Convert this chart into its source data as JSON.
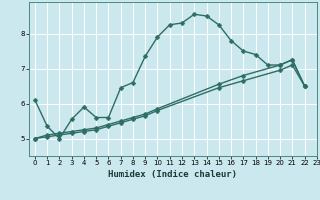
{
  "xlabel": "Humidex (Indice chaleur)",
  "background_color": "#cce8ef",
  "grid_color": "#ffffff",
  "line_color": "#2d6e63",
  "xlim": [
    -0.5,
    23
  ],
  "ylim": [
    4.5,
    8.9
  ],
  "yticks": [
    5,
    6,
    7,
    8
  ],
  "xticks": [
    0,
    1,
    2,
    3,
    4,
    5,
    6,
    7,
    8,
    9,
    10,
    11,
    12,
    13,
    14,
    15,
    16,
    17,
    18,
    19,
    20,
    21,
    22,
    23
  ],
  "series1_x": [
    0,
    1,
    2,
    3,
    4,
    5,
    6,
    7,
    8,
    9,
    10,
    11,
    12,
    13,
    14,
    15,
    16,
    17,
    18,
    19,
    20,
    21,
    22
  ],
  "series1_y": [
    6.1,
    5.35,
    5.0,
    5.55,
    5.9,
    5.6,
    5.6,
    6.45,
    6.6,
    7.35,
    7.9,
    8.25,
    8.3,
    8.55,
    8.5,
    8.25,
    7.8,
    7.5,
    7.4,
    7.1,
    7.1,
    7.25,
    6.5
  ],
  "series2_x": [
    0,
    1,
    2,
    3,
    4,
    5,
    6,
    7,
    8,
    9,
    10,
    15,
    17,
    20,
    21,
    22
  ],
  "series2_y": [
    5.0,
    5.1,
    5.15,
    5.2,
    5.25,
    5.3,
    5.4,
    5.5,
    5.6,
    5.7,
    5.85,
    6.55,
    6.8,
    7.1,
    7.25,
    6.5
  ],
  "series3_x": [
    0,
    1,
    2,
    3,
    4,
    5,
    6,
    7,
    8,
    9,
    10,
    15,
    17,
    20,
    21,
    22
  ],
  "series3_y": [
    5.0,
    5.05,
    5.1,
    5.15,
    5.2,
    5.25,
    5.35,
    5.45,
    5.55,
    5.65,
    5.8,
    6.45,
    6.65,
    6.95,
    7.1,
    6.5
  ],
  "markersize": 2.5,
  "linewidth": 1.0
}
